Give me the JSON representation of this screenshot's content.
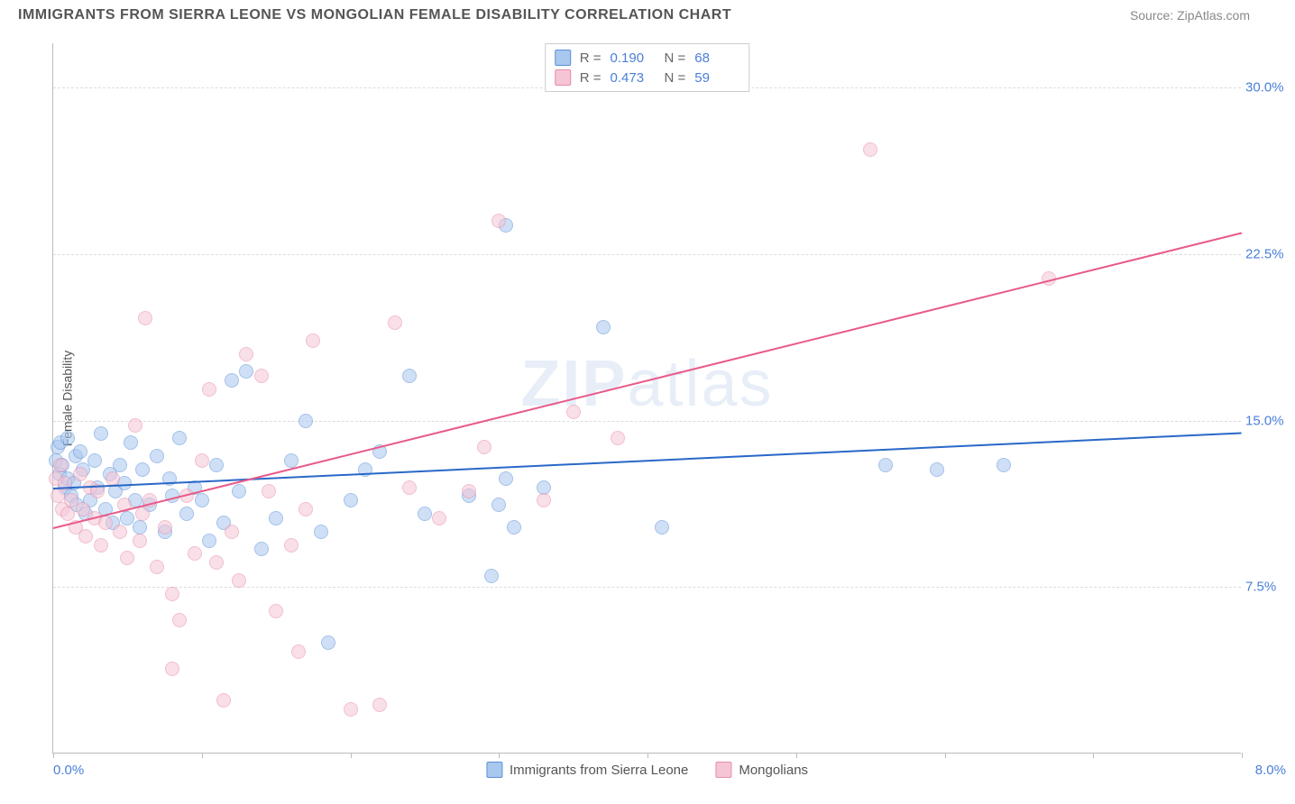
{
  "header": {
    "title": "IMMIGRANTS FROM SIERRA LEONE VS MONGOLIAN FEMALE DISABILITY CORRELATION CHART",
    "source": "Source: ZipAtlas.com"
  },
  "chart": {
    "type": "scatter",
    "y_axis_title": "Female Disability",
    "xlim": [
      0,
      8
    ],
    "ylim": [
      0,
      32
    ],
    "x_labels": {
      "min": "0.0%",
      "max": "8.0%"
    },
    "y_gridlines": [
      7.5,
      15.0,
      22.5,
      30.0
    ],
    "y_tick_labels": [
      "7.5%",
      "15.0%",
      "22.5%",
      "30.0%"
    ],
    "x_tick_positions": [
      0,
      1,
      2,
      3,
      4,
      5,
      6,
      7,
      8
    ],
    "background_color": "#ffffff",
    "grid_color": "#dddddd",
    "axis_color": "#bbbbbb",
    "label_color": "#4a7fd8",
    "point_radius": 8,
    "point_opacity": 0.55,
    "watermark": "ZIPatlas",
    "series": [
      {
        "name": "Immigrants from Sierra Leone",
        "fill_color": "#a8c8ef",
        "stroke_color": "#5a8fd8",
        "line_color": "#2968c8",
        "r_value": "0.190",
        "n_value": "68",
        "trend": {
          "x1": 0,
          "y1": 12.0,
          "x2": 8,
          "y2": 14.5
        },
        "points": [
          [
            0.02,
            13.2
          ],
          [
            0.03,
            13.8
          ],
          [
            0.04,
            12.6
          ],
          [
            0.05,
            14.0
          ],
          [
            0.06,
            13.0
          ],
          [
            0.08,
            12.0
          ],
          [
            0.1,
            14.2
          ],
          [
            0.1,
            12.4
          ],
          [
            0.12,
            11.6
          ],
          [
            0.14,
            12.2
          ],
          [
            0.15,
            13.4
          ],
          [
            0.16,
            11.2
          ],
          [
            0.18,
            13.6
          ],
          [
            0.2,
            12.8
          ],
          [
            0.22,
            10.8
          ],
          [
            0.25,
            11.4
          ],
          [
            0.28,
            13.2
          ],
          [
            0.3,
            12.0
          ],
          [
            0.32,
            14.4
          ],
          [
            0.35,
            11.0
          ],
          [
            0.38,
            12.6
          ],
          [
            0.4,
            10.4
          ],
          [
            0.42,
            11.8
          ],
          [
            0.45,
            13.0
          ],
          [
            0.48,
            12.2
          ],
          [
            0.5,
            10.6
          ],
          [
            0.52,
            14.0
          ],
          [
            0.55,
            11.4
          ],
          [
            0.58,
            10.2
          ],
          [
            0.6,
            12.8
          ],
          [
            0.65,
            11.2
          ],
          [
            0.7,
            13.4
          ],
          [
            0.75,
            10.0
          ],
          [
            0.78,
            12.4
          ],
          [
            0.8,
            11.6
          ],
          [
            0.85,
            14.2
          ],
          [
            0.9,
            10.8
          ],
          [
            0.95,
            12.0
          ],
          [
            1.0,
            11.4
          ],
          [
            1.05,
            9.6
          ],
          [
            1.1,
            13.0
          ],
          [
            1.15,
            10.4
          ],
          [
            1.2,
            16.8
          ],
          [
            1.25,
            11.8
          ],
          [
            1.3,
            17.2
          ],
          [
            1.4,
            9.2
          ],
          [
            1.5,
            10.6
          ],
          [
            1.6,
            13.2
          ],
          [
            1.7,
            15.0
          ],
          [
            1.8,
            10.0
          ],
          [
            1.85,
            5.0
          ],
          [
            2.0,
            11.4
          ],
          [
            2.1,
            12.8
          ],
          [
            2.2,
            13.6
          ],
          [
            2.4,
            17.0
          ],
          [
            2.5,
            10.8
          ],
          [
            2.8,
            11.6
          ],
          [
            2.95,
            8.0
          ],
          [
            3.0,
            11.2
          ],
          [
            3.05,
            23.8
          ],
          [
            3.05,
            12.4
          ],
          [
            3.1,
            10.2
          ],
          [
            3.3,
            12.0
          ],
          [
            3.7,
            19.2
          ],
          [
            4.1,
            10.2
          ],
          [
            5.6,
            13.0
          ],
          [
            5.95,
            12.8
          ],
          [
            6.4,
            13.0
          ]
        ]
      },
      {
        "name": "Mongolians",
        "fill_color": "#f5c5d5",
        "stroke_color": "#e88ba8",
        "line_color": "#e85a8a",
        "r_value": "0.473",
        "n_value": "59",
        "trend": {
          "x1": 0,
          "y1": 10.2,
          "x2": 8,
          "y2": 23.5
        },
        "points": [
          [
            0.02,
            12.4
          ],
          [
            0.03,
            11.6
          ],
          [
            0.05,
            13.0
          ],
          [
            0.06,
            11.0
          ],
          [
            0.08,
            12.2
          ],
          [
            0.1,
            10.8
          ],
          [
            0.12,
            11.4
          ],
          [
            0.15,
            10.2
          ],
          [
            0.18,
            12.6
          ],
          [
            0.2,
            11.0
          ],
          [
            0.22,
            9.8
          ],
          [
            0.25,
            12.0
          ],
          [
            0.28,
            10.6
          ],
          [
            0.3,
            11.8
          ],
          [
            0.32,
            9.4
          ],
          [
            0.35,
            10.4
          ],
          [
            0.4,
            12.4
          ],
          [
            0.45,
            10.0
          ],
          [
            0.48,
            11.2
          ],
          [
            0.5,
            8.8
          ],
          [
            0.55,
            14.8
          ],
          [
            0.58,
            9.6
          ],
          [
            0.6,
            10.8
          ],
          [
            0.62,
            19.6
          ],
          [
            0.65,
            11.4
          ],
          [
            0.7,
            8.4
          ],
          [
            0.75,
            10.2
          ],
          [
            0.8,
            7.2
          ],
          [
            0.8,
            3.8
          ],
          [
            0.85,
            6.0
          ],
          [
            0.9,
            11.6
          ],
          [
            0.95,
            9.0
          ],
          [
            1.0,
            13.2
          ],
          [
            1.05,
            16.4
          ],
          [
            1.1,
            8.6
          ],
          [
            1.15,
            2.4
          ],
          [
            1.2,
            10.0
          ],
          [
            1.25,
            7.8
          ],
          [
            1.3,
            18.0
          ],
          [
            1.4,
            17.0
          ],
          [
            1.45,
            11.8
          ],
          [
            1.5,
            6.4
          ],
          [
            1.6,
            9.4
          ],
          [
            1.65,
            4.6
          ],
          [
            1.7,
            11.0
          ],
          [
            1.75,
            18.6
          ],
          [
            2.0,
            2.0
          ],
          [
            2.2,
            2.2
          ],
          [
            2.3,
            19.4
          ],
          [
            2.4,
            12.0
          ],
          [
            2.6,
            10.6
          ],
          [
            2.8,
            11.8
          ],
          [
            2.9,
            13.8
          ],
          [
            3.0,
            24.0
          ],
          [
            3.3,
            11.4
          ],
          [
            3.5,
            15.4
          ],
          [
            3.8,
            14.2
          ],
          [
            5.5,
            27.2
          ],
          [
            6.7,
            21.4
          ]
        ]
      }
    ]
  }
}
